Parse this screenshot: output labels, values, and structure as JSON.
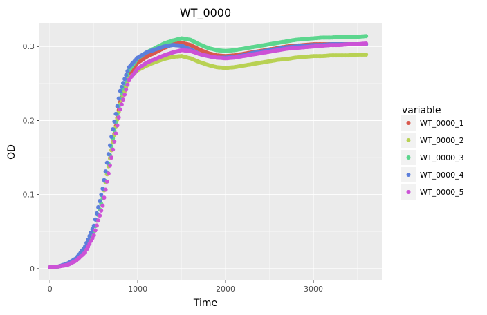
{
  "chart_data": {
    "type": "scatter",
    "title": "WT_0000",
    "xlabel": "Time",
    "ylabel": "OD",
    "xlim": [
      -120,
      3780
    ],
    "ylim": [
      -0.015,
      0.331
    ],
    "x_ticks": [
      0,
      1000,
      2000,
      3000
    ],
    "x_tick_labels": [
      "0",
      "1000",
      "2000",
      "3000"
    ],
    "y_ticks": [
      0,
      0.1,
      0.2,
      0.3
    ],
    "y_tick_labels": [
      "0",
      "0.1",
      "0.2",
      "0.3"
    ],
    "grid": true,
    "legend_title": "variable",
    "legend_position": "right",
    "series": [
      {
        "name": "WT_0000_1",
        "color": "#d9584c",
        "points": [
          [
            0,
            0.002
          ],
          [
            100,
            0.003
          ],
          [
            200,
            0.006
          ],
          [
            300,
            0.012
          ],
          [
            400,
            0.025
          ],
          [
            500,
            0.05
          ],
          [
            600,
            0.095
          ],
          [
            700,
            0.16
          ],
          [
            800,
            0.225
          ],
          [
            900,
            0.262
          ],
          [
            1000,
            0.278
          ],
          [
            1100,
            0.286
          ],
          [
            1200,
            0.292
          ],
          [
            1300,
            0.298
          ],
          [
            1400,
            0.303
          ],
          [
            1500,
            0.305
          ],
          [
            1600,
            0.302
          ],
          [
            1700,
            0.296
          ],
          [
            1800,
            0.291
          ],
          [
            1900,
            0.288
          ],
          [
            2000,
            0.287
          ],
          [
            2100,
            0.288
          ],
          [
            2200,
            0.29
          ],
          [
            2300,
            0.292
          ],
          [
            2400,
            0.294
          ],
          [
            2500,
            0.296
          ],
          [
            2600,
            0.298
          ],
          [
            2700,
            0.3
          ],
          [
            2800,
            0.301
          ],
          [
            2900,
            0.302
          ],
          [
            3000,
            0.303
          ],
          [
            3100,
            0.303
          ],
          [
            3200,
            0.303
          ],
          [
            3300,
            0.303
          ],
          [
            3400,
            0.303
          ],
          [
            3500,
            0.303
          ],
          [
            3600,
            0.303
          ]
        ]
      },
      {
        "name": "WT_0000_2",
        "color": "#b8d153",
        "points": [
          [
            0,
            0.002
          ],
          [
            100,
            0.003
          ],
          [
            200,
            0.006
          ],
          [
            300,
            0.012
          ],
          [
            400,
            0.025
          ],
          [
            500,
            0.05
          ],
          [
            600,
            0.095
          ],
          [
            700,
            0.16
          ],
          [
            800,
            0.222
          ],
          [
            900,
            0.257
          ],
          [
            1000,
            0.268
          ],
          [
            1100,
            0.274
          ],
          [
            1200,
            0.279
          ],
          [
            1300,
            0.283
          ],
          [
            1400,
            0.286
          ],
          [
            1500,
            0.287
          ],
          [
            1600,
            0.284
          ],
          [
            1700,
            0.279
          ],
          [
            1800,
            0.275
          ],
          [
            1900,
            0.272
          ],
          [
            2000,
            0.271
          ],
          [
            2100,
            0.272
          ],
          [
            2200,
            0.274
          ],
          [
            2300,
            0.276
          ],
          [
            2400,
            0.278
          ],
          [
            2500,
            0.28
          ],
          [
            2600,
            0.282
          ],
          [
            2700,
            0.283
          ],
          [
            2800,
            0.285
          ],
          [
            2900,
            0.286
          ],
          [
            3000,
            0.287
          ],
          [
            3100,
            0.287
          ],
          [
            3200,
            0.288
          ],
          [
            3300,
            0.288
          ],
          [
            3400,
            0.288
          ],
          [
            3500,
            0.289
          ],
          [
            3600,
            0.289
          ]
        ]
      },
      {
        "name": "WT_0000_3",
        "color": "#5cd68e",
        "points": [
          [
            0,
            0.002
          ],
          [
            100,
            0.003
          ],
          [
            200,
            0.006
          ],
          [
            300,
            0.012
          ],
          [
            400,
            0.025
          ],
          [
            500,
            0.05
          ],
          [
            600,
            0.095
          ],
          [
            700,
            0.165
          ],
          [
            800,
            0.23
          ],
          [
            900,
            0.268
          ],
          [
            1000,
            0.284
          ],
          [
            1100,
            0.292
          ],
          [
            1200,
            0.298
          ],
          [
            1300,
            0.304
          ],
          [
            1400,
            0.308
          ],
          [
            1500,
            0.311
          ],
          [
            1600,
            0.309
          ],
          [
            1700,
            0.303
          ],
          [
            1800,
            0.298
          ],
          [
            1900,
            0.295
          ],
          [
            2000,
            0.294
          ],
          [
            2100,
            0.295
          ],
          [
            2200,
            0.297
          ],
          [
            2300,
            0.299
          ],
          [
            2400,
            0.301
          ],
          [
            2500,
            0.303
          ],
          [
            2600,
            0.305
          ],
          [
            2700,
            0.307
          ],
          [
            2800,
            0.309
          ],
          [
            2900,
            0.31
          ],
          [
            3000,
            0.311
          ],
          [
            3100,
            0.312
          ],
          [
            3200,
            0.312
          ],
          [
            3300,
            0.313
          ],
          [
            3400,
            0.313
          ],
          [
            3500,
            0.313
          ],
          [
            3600,
            0.314
          ]
        ]
      },
      {
        "name": "WT_0000_4",
        "color": "#5c7fdb",
        "points": [
          [
            0,
            0.002
          ],
          [
            100,
            0.003
          ],
          [
            200,
            0.007
          ],
          [
            300,
            0.014
          ],
          [
            400,
            0.03
          ],
          [
            500,
            0.058
          ],
          [
            600,
            0.108
          ],
          [
            700,
            0.178
          ],
          [
            800,
            0.24
          ],
          [
            900,
            0.272
          ],
          [
            1000,
            0.285
          ],
          [
            1100,
            0.292
          ],
          [
            1200,
            0.296
          ],
          [
            1300,
            0.3
          ],
          [
            1400,
            0.302
          ],
          [
            1500,
            0.301
          ],
          [
            1600,
            0.296
          ],
          [
            1700,
            0.29
          ],
          [
            1800,
            0.287
          ],
          [
            1900,
            0.285
          ],
          [
            2000,
            0.285
          ],
          [
            2100,
            0.286
          ],
          [
            2200,
            0.288
          ],
          [
            2300,
            0.291
          ],
          [
            2400,
            0.293
          ],
          [
            2500,
            0.295
          ],
          [
            2600,
            0.297
          ],
          [
            2700,
            0.299
          ],
          [
            2800,
            0.3
          ],
          [
            2900,
            0.301
          ],
          [
            3000,
            0.302
          ],
          [
            3100,
            0.302
          ],
          [
            3200,
            0.303
          ],
          [
            3300,
            0.303
          ],
          [
            3400,
            0.303
          ],
          [
            3500,
            0.303
          ],
          [
            3600,
            0.303
          ]
        ]
      },
      {
        "name": "WT_0000_5",
        "color": "#cc52d6",
        "points": [
          [
            0,
            0.002
          ],
          [
            100,
            0.003
          ],
          [
            200,
            0.005
          ],
          [
            300,
            0.011
          ],
          [
            400,
            0.022
          ],
          [
            500,
            0.045
          ],
          [
            600,
            0.085
          ],
          [
            700,
            0.15
          ],
          [
            800,
            0.215
          ],
          [
            900,
            0.255
          ],
          [
            1000,
            0.27
          ],
          [
            1100,
            0.278
          ],
          [
            1200,
            0.283
          ],
          [
            1300,
            0.288
          ],
          [
            1400,
            0.292
          ],
          [
            1500,
            0.295
          ],
          [
            1600,
            0.294
          ],
          [
            1700,
            0.29
          ],
          [
            1800,
            0.287
          ],
          [
            1900,
            0.285
          ],
          [
            2000,
            0.284
          ],
          [
            2100,
            0.285
          ],
          [
            2200,
            0.287
          ],
          [
            2300,
            0.289
          ],
          [
            2400,
            0.291
          ],
          [
            2500,
            0.293
          ],
          [
            2600,
            0.295
          ],
          [
            2700,
            0.297
          ],
          [
            2800,
            0.298
          ],
          [
            2900,
            0.299
          ],
          [
            3000,
            0.3
          ],
          [
            3100,
            0.301
          ],
          [
            3200,
            0.302
          ],
          [
            3300,
            0.302
          ],
          [
            3400,
            0.303
          ],
          [
            3500,
            0.303
          ],
          [
            3600,
            0.304
          ]
        ]
      }
    ]
  }
}
